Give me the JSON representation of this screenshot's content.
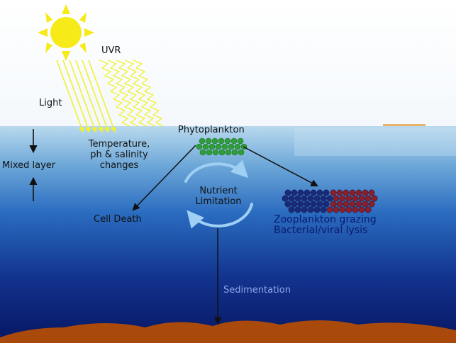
{
  "labels": {
    "uvr": "UVR",
    "light": "Light",
    "mixed_layer": "Mixed layer",
    "temperature_line1": "Temperature,",
    "temperature_line2": "ph & salinity",
    "temperature_line3": "changes",
    "phytoplankton": "Phytoplankton",
    "nutrient_line1": "Nutrient",
    "nutrient_line2": "Limitation",
    "cell_death": "Cell Death",
    "zooplankton_line1": "Zooplankton grazing",
    "zooplankton_line2": "Bacterial/viral lysis",
    "sedimentation": "Sedimentation"
  },
  "colors": {
    "sky": "#ffffff",
    "surface_water": "#a9cde6",
    "mid_water": "#1f63b5",
    "deep_water": "#0b1f6e",
    "sun": "#f7ea19",
    "light_rays": "#f2f032",
    "phytoplankton": "#2f9e3a",
    "zooplankton_blue": "#1a2a7a",
    "zooplankton_red": "#8a1f2a",
    "sediment": "#a94a0c",
    "cycle_arrows": "#9fd0f3"
  }
}
